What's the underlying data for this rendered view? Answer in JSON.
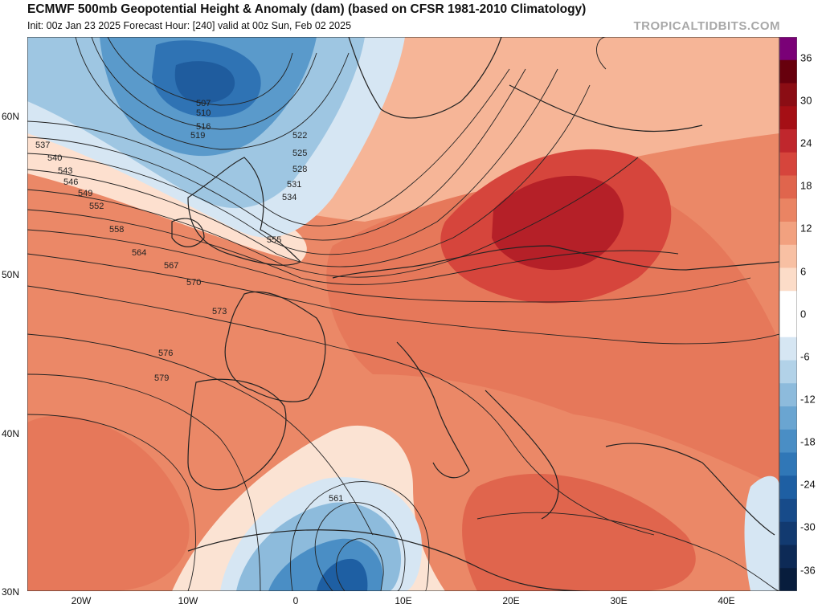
{
  "header": {
    "title": "ECMWF 500mb Geopotential Height & Anomaly (dam) (based on CFSR 1981-2010 Climatology)",
    "subtitle": "Init: 00z Jan 23 2025   Forecast Hour: [240]   valid at 00z Sun, Feb 02 2025",
    "brand": "TROPICALTIDBITS.COM"
  },
  "axes": {
    "lat_labels": [
      "60N",
      "50N",
      "40N",
      "30N"
    ],
    "lon_labels": [
      "20W",
      "10W",
      "0",
      "10E",
      "20E",
      "30E",
      "40E"
    ]
  },
  "colorbar": {
    "labels": [
      "36",
      "30",
      "24",
      "18",
      "12",
      "6",
      "0",
      "-6",
      "-12",
      "-18",
      "-24",
      "-30",
      "-36"
    ],
    "colors": [
      "#7a0177",
      "#67000d",
      "#8b0d14",
      "#a50f15",
      "#c0272d",
      "#d6453c",
      "#e0654d",
      "#ea8463",
      "#f2a17f",
      "#f8c0a3",
      "#fcdcc8",
      "#ffffff",
      "#ffffff",
      "#d6e6f3",
      "#b2d2e8",
      "#8dbbdc",
      "#6aa5d1",
      "#4a8ec5",
      "#3077b7",
      "#1e5fa3",
      "#174b8a",
      "#123a70",
      "#0d2a56",
      "#081d3d"
    ]
  },
  "contours": {
    "labels": [
      "507",
      "510",
      "516",
      "519",
      "522",
      "525",
      "528",
      "531",
      "534",
      "537",
      "540",
      "543",
      "546",
      "549",
      "552",
      "555",
      "558",
      "561",
      "564",
      "567",
      "570",
      "573",
      "576",
      "579"
    ]
  },
  "colors": {
    "low_core": "#1e5fa3",
    "high_core": "#b52028",
    "land_border": "#222222"
  }
}
